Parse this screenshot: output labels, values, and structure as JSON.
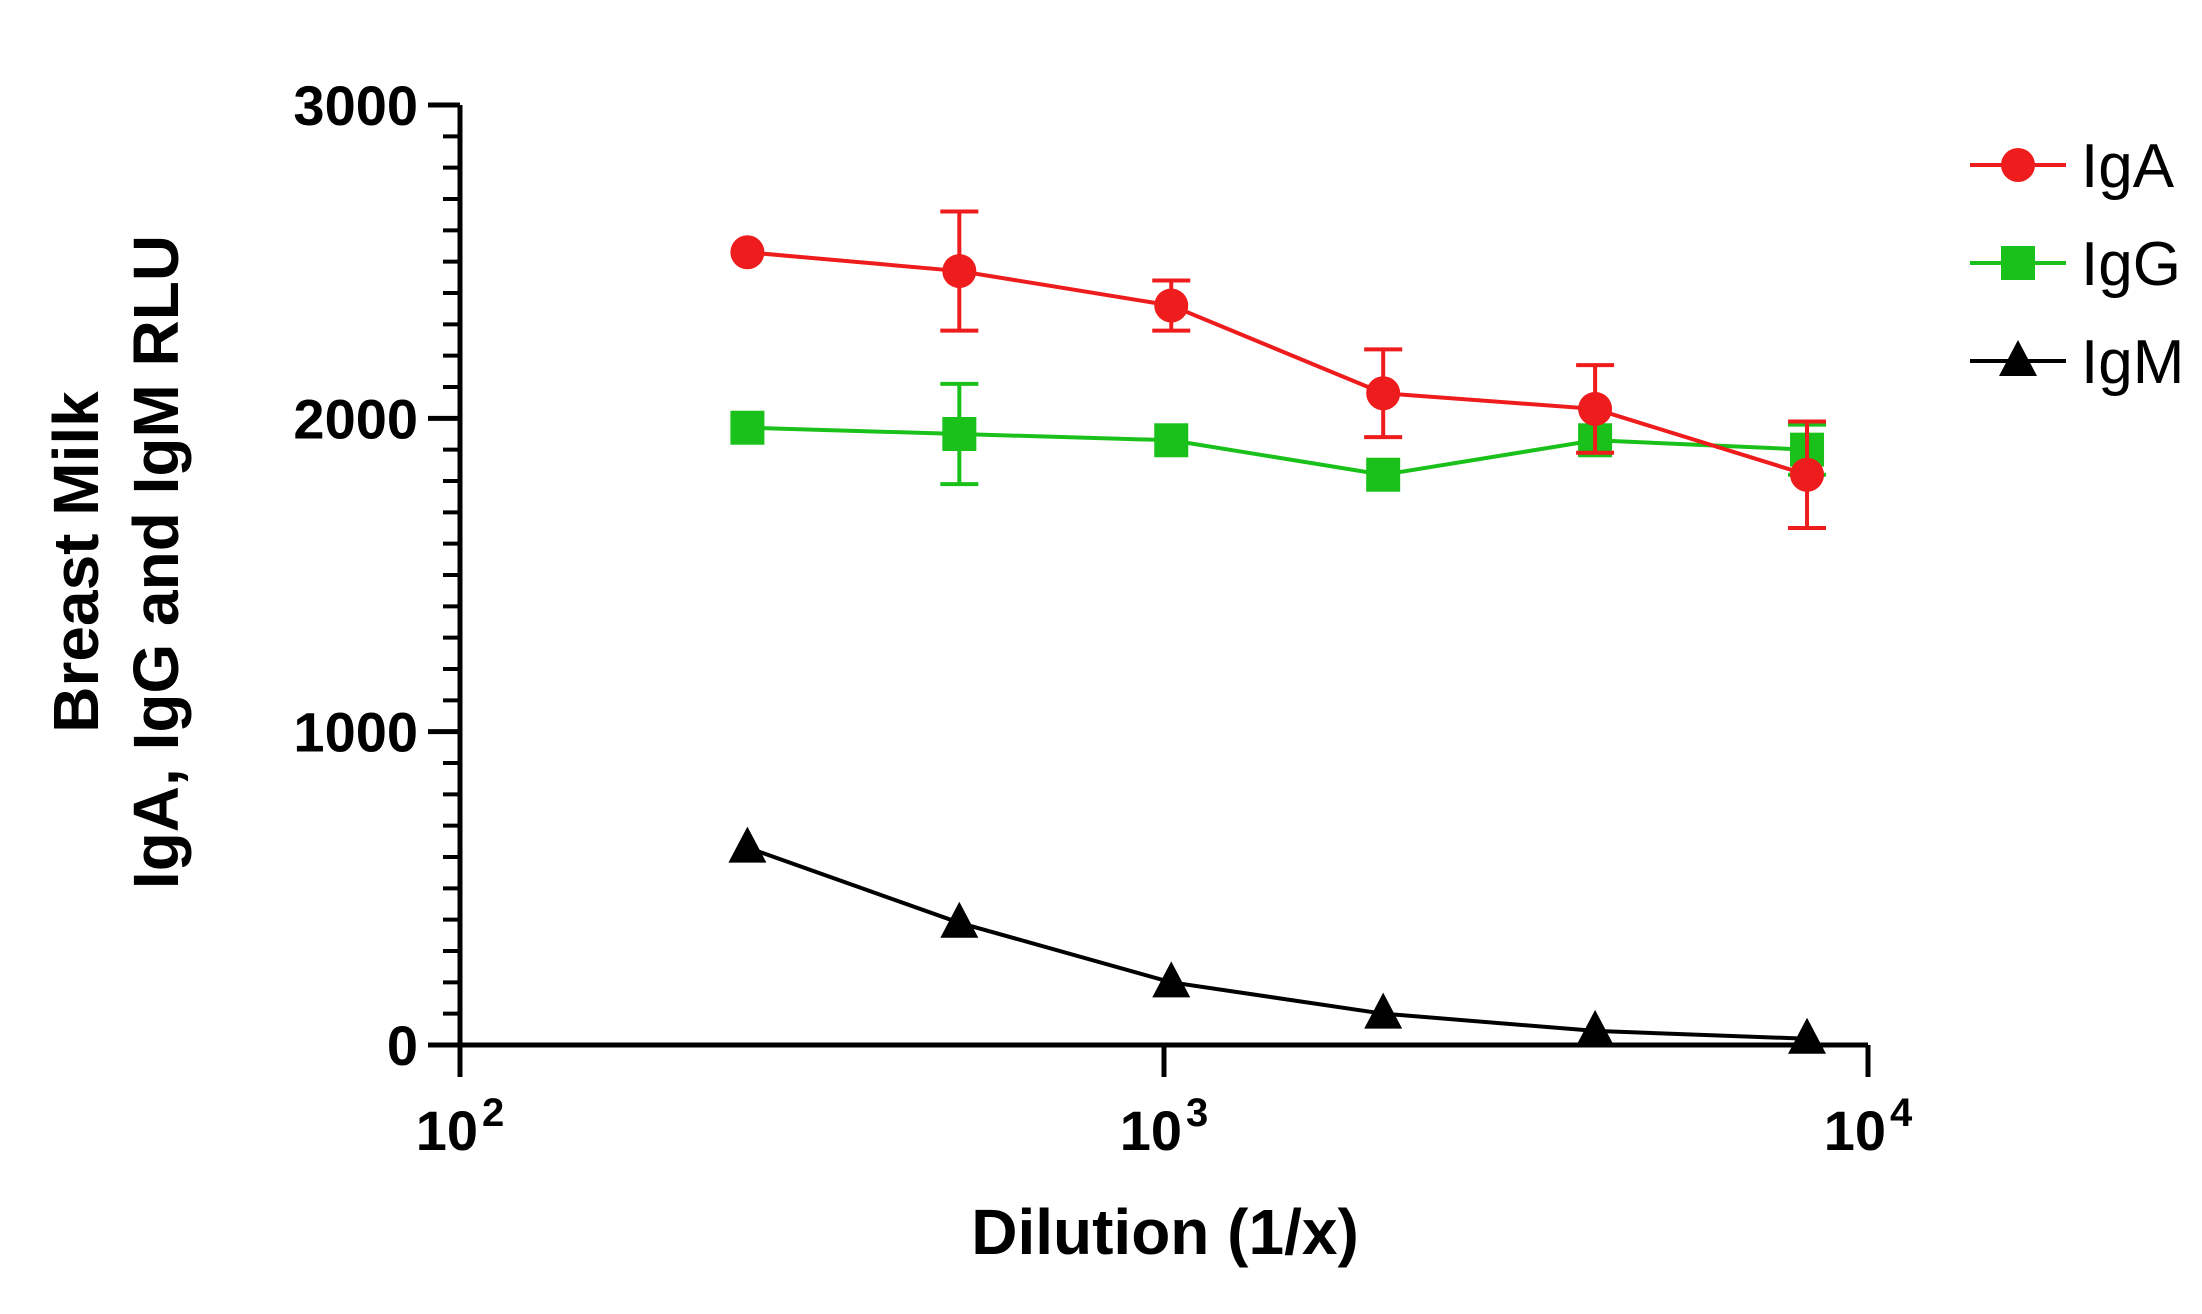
{
  "chart_data": {
    "type": "line",
    "xscale": "log",
    "xlabel": "Dilution (1/x)",
    "ylabel_lines": [
      "Breast Milk",
      "IgA, IgG and IgM RLU"
    ],
    "ylim": [
      0,
      3000
    ],
    "xlim": [
      100,
      10000
    ],
    "y_ticks": [
      0,
      1000,
      2000,
      3000
    ],
    "y_tick_labels": [
      "0",
      "1000",
      "2000",
      "3000"
    ],
    "y_minor_step": 100,
    "x_ticks": [
      {
        "value": 100,
        "base": "10",
        "exp": "2"
      },
      {
        "value": 1000,
        "base": "10",
        "exp": "3"
      },
      {
        "value": 10000,
        "base": "10",
        "exp": "4"
      }
    ],
    "x": [
      256,
      512,
      1024,
      2048,
      4096,
      8192
    ],
    "series": [
      {
        "name": "IgA",
        "color": "#ee1c1c",
        "marker": "circle",
        "values": [
          2530,
          2470,
          2360,
          2080,
          2030,
          1820
        ],
        "errors": [
          0,
          190,
          80,
          140,
          140,
          170
        ]
      },
      {
        "name": "IgG",
        "color": "#1bc11b",
        "marker": "square",
        "values": [
          1970,
          1950,
          1930,
          1820,
          1930,
          1900
        ],
        "errors": [
          0,
          160,
          0,
          0,
          0,
          80
        ]
      },
      {
        "name": "IgM",
        "color": "#000000",
        "marker": "triangle",
        "values": [
          630,
          390,
          200,
          100,
          45,
          20
        ],
        "errors": [
          0,
          0,
          0,
          0,
          0,
          0
        ]
      }
    ],
    "legend_position": "top-right"
  }
}
